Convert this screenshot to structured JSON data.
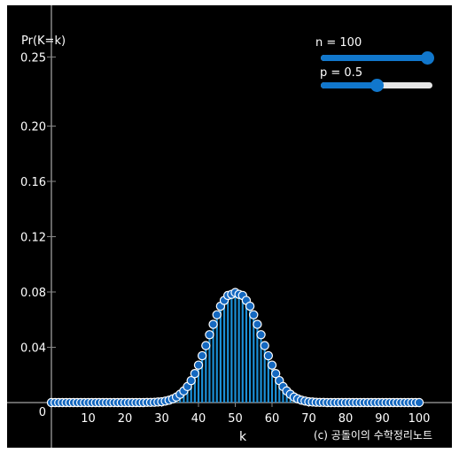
{
  "colors": {
    "accent": "#1177cc",
    "stem": "#1b8fd6",
    "marker": "#1468c0",
    "axis": "#888888",
    "background": "#000000"
  },
  "sliders": {
    "n": {
      "label": "n = 100",
      "value": 100,
      "min": 0,
      "max": 100
    },
    "p": {
      "label": "p = 0.5",
      "value": 0.5,
      "min": 0,
      "max": 1
    }
  },
  "watermark": "(c) 공돌이의 수학정리노트",
  "chart_data": {
    "type": "stem",
    "title": "",
    "xlabel": "k",
    "ylabel": "Pr(K=k)",
    "xlim": [
      0,
      100
    ],
    "ylim": [
      0,
      0.27
    ],
    "xticks": [
      10,
      20,
      30,
      40,
      50,
      60,
      70,
      80,
      90,
      100
    ],
    "yticks": [
      0.04,
      0.08,
      0.12,
      0.16,
      0.2,
      0.25
    ],
    "ytick_labels": [
      "0.04",
      "0.08",
      "0.12",
      "0.16",
      "0.20",
      "0.25"
    ],
    "origin_label": "0",
    "grid": false,
    "x": [
      0,
      1,
      2,
      3,
      4,
      5,
      6,
      7,
      8,
      9,
      10,
      11,
      12,
      13,
      14,
      15,
      16,
      17,
      18,
      19,
      20,
      21,
      22,
      23,
      24,
      25,
      26,
      27,
      28,
      29,
      30,
      31,
      32,
      33,
      34,
      35,
      36,
      37,
      38,
      39,
      40,
      41,
      42,
      43,
      44,
      45,
      46,
      47,
      48,
      49,
      50,
      51,
      52,
      53,
      54,
      55,
      56,
      57,
      58,
      59,
      60,
      61,
      62,
      63,
      64,
      65,
      66,
      67,
      68,
      69,
      70,
      71,
      72,
      73,
      74,
      75,
      76,
      77,
      78,
      79,
      80,
      81,
      82,
      83,
      84,
      85,
      86,
      87,
      88,
      89,
      90,
      91,
      92,
      93,
      94,
      95,
      96,
      97,
      98,
      99,
      100
    ],
    "y": [
      0,
      0,
      0,
      0,
      0,
      0,
      0,
      0,
      0,
      0,
      0,
      0,
      0,
      0,
      0,
      0,
      0,
      0,
      0,
      0,
      0,
      0,
      0,
      0,
      0,
      0,
      0.0001,
      0.0001,
      0.0002,
      0.0004,
      0.0006,
      0.0011,
      0.0017,
      0.0027,
      0.004,
      0.006,
      0.0084,
      0.0116,
      0.0159,
      0.021,
      0.0271,
      0.0339,
      0.0412,
      0.0491,
      0.0566,
      0.0635,
      0.0697,
      0.0739,
      0.0775,
      0.0783,
      0.0796,
      0.0783,
      0.0775,
      0.0739,
      0.0697,
      0.0635,
      0.0566,
      0.0491,
      0.0412,
      0.0339,
      0.0271,
      0.021,
      0.0159,
      0.0116,
      0.0084,
      0.006,
      0.004,
      0.0027,
      0.0017,
      0.0011,
      0.0006,
      0.0004,
      0.0002,
      0.0001,
      0.0001,
      0,
      0,
      0,
      0,
      0,
      0,
      0,
      0,
      0,
      0,
      0,
      0,
      0,
      0,
      0,
      0,
      0,
      0,
      0,
      0,
      0,
      0,
      0,
      0,
      0,
      0
    ]
  }
}
